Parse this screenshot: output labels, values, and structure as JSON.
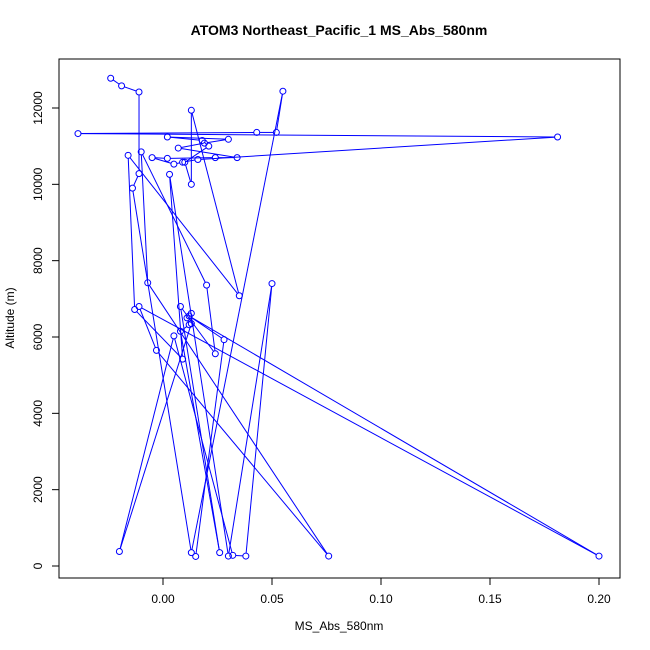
{
  "chart_data": {
    "type": "line",
    "title": "ATOM3 Northeast_Pacific_1 MS_Abs_580nm",
    "xlabel": "MS_Abs_580nm",
    "ylabel": "Altitude (m)",
    "xlim": [
      -0.04,
      0.2
    ],
    "ylim": [
      0,
      13000
    ],
    "x_ticks": [
      0.0,
      0.05,
      0.1,
      0.15,
      0.2
    ],
    "x_tick_labels": [
      "0.00",
      "0.05",
      "0.10",
      "0.15",
      "0.20"
    ],
    "y_ticks": [
      0,
      2000,
      4000,
      6000,
      8000,
      10000,
      12000
    ],
    "y_tick_labels": [
      "0",
      "2000",
      "4000",
      "6000",
      "8000",
      "10000",
      "12000"
    ],
    "grid": false,
    "series": [
      {
        "color": "#0000ff",
        "marker": "open-circle",
        "points": [
          {
            "x": -0.024,
            "y": 12780
          },
          {
            "x": -0.019,
            "y": 12580
          },
          {
            "x": -0.011,
            "y": 12420
          },
          {
            "x": -0.011,
            "y": 10280
          },
          {
            "x": -0.014,
            "y": 9900
          },
          {
            "x": 0.013,
            "y": 350
          },
          {
            "x": 0.055,
            "y": 12440
          },
          {
            "x": 0.052,
            "y": 11360
          },
          {
            "x": 0.043,
            "y": 11360
          },
          {
            "x": -0.039,
            "y": 11330
          },
          {
            "x": 0.181,
            "y": 11240
          },
          {
            "x": 0.016,
            "y": 10650
          },
          {
            "x": 0.009,
            "y": 10580
          },
          {
            "x": 0.005,
            "y": 10530
          },
          {
            "x": -0.005,
            "y": 10700
          },
          {
            "x": 0.002,
            "y": 10680
          },
          {
            "x": 0.024,
            "y": 10700
          },
          {
            "x": 0.034,
            "y": 10700
          },
          {
            "x": 0.007,
            "y": 10950
          },
          {
            "x": 0.019,
            "y": 11080
          },
          {
            "x": 0.03,
            "y": 11180
          },
          {
            "x": 0.002,
            "y": 11240
          },
          {
            "x": 0.018,
            "y": 11150
          },
          {
            "x": 0.021,
            "y": 11000
          },
          {
            "x": 0.01,
            "y": 10580
          },
          {
            "x": 0.013,
            "y": 10000
          },
          {
            "x": 0.013,
            "y": 11940
          },
          {
            "x": 0.035,
            "y": 7080
          },
          {
            "x": -0.016,
            "y": 10760
          },
          {
            "x": -0.013,
            "y": 6720
          },
          {
            "x": 0.009,
            "y": 5420
          },
          {
            "x": 0.003,
            "y": 10260
          },
          {
            "x": 0.03,
            "y": 260
          },
          {
            "x": 0.05,
            "y": 7400
          },
          {
            "x": 0.038,
            "y": 260
          },
          {
            "x": 0.032,
            "y": 280
          },
          {
            "x": 0.005,
            "y": 6030
          },
          {
            "x": -0.02,
            "y": 380
          },
          {
            "x": 0.013,
            "y": 6350
          },
          {
            "x": 0.013,
            "y": 6620
          },
          {
            "x": 0.011,
            "y": 6500
          },
          {
            "x": 0.012,
            "y": 6320
          },
          {
            "x": 0.008,
            "y": 6150
          },
          {
            "x": 0.026,
            "y": 350
          },
          {
            "x": 0.008,
            "y": 6800
          },
          {
            "x": 0.024,
            "y": 5560
          },
          {
            "x": 0.02,
            "y": 7360
          },
          {
            "x": -0.01,
            "y": 10850
          },
          {
            "x": -0.007,
            "y": 7420
          },
          {
            "x": 0.076,
            "y": 260
          },
          {
            "x": -0.003,
            "y": 5650
          },
          {
            "x": -0.011,
            "y": 6800
          },
          {
            "x": 0.2,
            "y": 260
          },
          {
            "x": 0.012,
            "y": 6550
          },
          {
            "x": 0.028,
            "y": 5930
          },
          {
            "x": 0.015,
            "y": 250
          }
        ]
      }
    ]
  }
}
